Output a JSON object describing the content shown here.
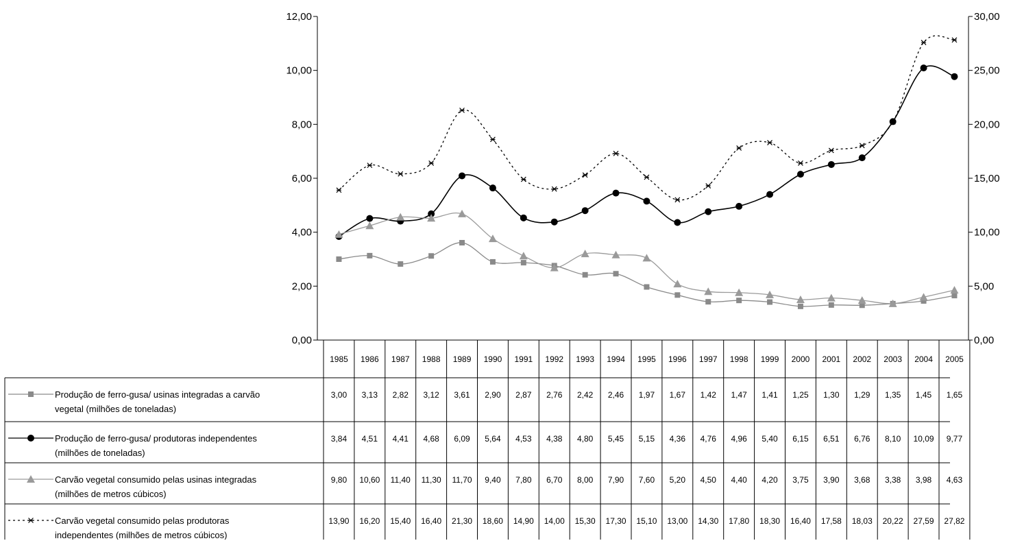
{
  "chart_data": {
    "type": "line",
    "categories": [
      "1985",
      "1986",
      "1987",
      "1988",
      "1989",
      "1990",
      "1991",
      "1992",
      "1993",
      "1994",
      "1995",
      "1996",
      "1997",
      "1998",
      "1999",
      "2000",
      "2001",
      "2002",
      "2003",
      "2004",
      "2005"
    ],
    "y_left": {
      "ticks": [
        "0,00",
        "2,00",
        "4,00",
        "6,00",
        "8,00",
        "10,00",
        "12,00"
      ],
      "ylim": [
        0,
        12
      ]
    },
    "y_right": {
      "ticks": [
        "0,00",
        "5,00",
        "10,00",
        "15,00",
        "20,00",
        "25,00",
        "30,00"
      ],
      "ylim": [
        0,
        30
      ]
    },
    "grid": false,
    "legend_placement": "bottom data table",
    "series": [
      {
        "name_lines": [
          "Produção de ferro-gusa/ usinas integradas a carvão",
          "vegetal (milhões de toneladas)"
        ],
        "axis": "left",
        "marker": "square",
        "color": "#8a8a8a",
        "dash": "solid",
        "values": [
          3.0,
          3.13,
          2.82,
          3.12,
          3.61,
          2.9,
          2.87,
          2.76,
          2.42,
          2.46,
          1.97,
          1.67,
          1.42,
          1.47,
          1.41,
          1.25,
          1.3,
          1.29,
          1.35,
          1.45,
          1.65
        ],
        "labels": [
          "3,00",
          "3,13",
          "2,82",
          "3,12",
          "3,61",
          "2,90",
          "2,87",
          "2,76",
          "2,42",
          "2,46",
          "1,97",
          "1,67",
          "1,42",
          "1,47",
          "1,41",
          "1,25",
          "1,30",
          "1,29",
          "1,35",
          "1,45",
          "1,65"
        ]
      },
      {
        "name_lines": [
          "Produção de ferro-gusa/ produtoras independentes",
          "(milhões de toneladas)"
        ],
        "axis": "left",
        "marker": "circle",
        "color": "#000000",
        "dash": "solid",
        "values": [
          3.84,
          4.51,
          4.41,
          4.68,
          6.09,
          5.64,
          4.53,
          4.38,
          4.8,
          5.45,
          5.15,
          4.36,
          4.76,
          4.96,
          5.4,
          6.15,
          6.51,
          6.76,
          8.1,
          10.09,
          9.77
        ],
        "labels": [
          "3,84",
          "4,51",
          "4,41",
          "4,68",
          "6,09",
          "5,64",
          "4,53",
          "4,38",
          "4,80",
          "5,45",
          "5,15",
          "4,36",
          "4,76",
          "4,96",
          "5,40",
          "6,15",
          "6,51",
          "6,76",
          "8,10",
          "10,09",
          "9,77"
        ]
      },
      {
        "name_lines": [
          "Carvão vegetal consumido pelas usinas integradas",
          "(milhões de metros cúbicos)"
        ],
        "axis": "right",
        "marker": "triangle",
        "color": "#9a9a9a",
        "dash": "solid",
        "values": [
          9.8,
          10.6,
          11.4,
          11.3,
          11.7,
          9.4,
          7.8,
          6.7,
          8.0,
          7.9,
          7.6,
          5.2,
          4.5,
          4.4,
          4.2,
          3.75,
          3.9,
          3.68,
          3.38,
          3.98,
          4.63
        ],
        "labels": [
          "9,80",
          "10,60",
          "11,40",
          "11,30",
          "11,70",
          "9,40",
          "7,80",
          "6,70",
          "8,00",
          "7,90",
          "7,60",
          "5,20",
          "4,50",
          "4,40",
          "4,20",
          "3,75",
          "3,90",
          "3,68",
          "3,38",
          "3,98",
          "4,63"
        ]
      },
      {
        "name_lines": [
          "Carvão vegetal consumido pelas produtoras",
          "independentes (milhões de metros cúbicos)"
        ],
        "axis": "right",
        "marker": "star",
        "color": "#000000",
        "dash": "dotted",
        "values": [
          13.9,
          16.2,
          15.4,
          16.4,
          21.3,
          18.6,
          14.9,
          14.0,
          15.3,
          17.3,
          15.1,
          13.0,
          14.3,
          17.8,
          18.3,
          16.4,
          17.58,
          18.03,
          20.22,
          27.59,
          27.82
        ],
        "labels": [
          "13,90",
          "16,20",
          "15,40",
          "16,40",
          "21,30",
          "18,60",
          "14,90",
          "14,00",
          "15,30",
          "17,30",
          "15,10",
          "13,00",
          "14,30",
          "17,80",
          "18,30",
          "16,40",
          "17,58",
          "18,03",
          "20,22",
          "27,59",
          "27,82"
        ]
      }
    ]
  }
}
